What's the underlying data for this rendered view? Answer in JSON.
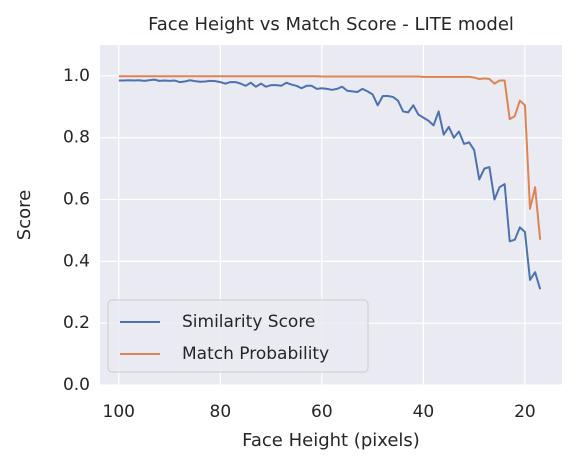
{
  "chart_data": {
    "type": "line",
    "title": "Face Height vs Match Score - LITE model",
    "xlabel": "Face Height (pixels)",
    "ylabel": "Score",
    "x": [
      100,
      99,
      98,
      97,
      96,
      95,
      94,
      93,
      92,
      91,
      90,
      89,
      88,
      87,
      86,
      85,
      84,
      83,
      82,
      81,
      80,
      79,
      78,
      77,
      76,
      75,
      74,
      73,
      72,
      71,
      70,
      69,
      68,
      67,
      66,
      65,
      64,
      63,
      62,
      61,
      60,
      59,
      58,
      57,
      56,
      55,
      54,
      53,
      52,
      51,
      50,
      49,
      48,
      47,
      46,
      45,
      44,
      43,
      42,
      41,
      40,
      39,
      38,
      37,
      36,
      35,
      34,
      33,
      32,
      31,
      30,
      29,
      28,
      27,
      26,
      25,
      24,
      23,
      22,
      21,
      20,
      19,
      18,
      17
    ],
    "series": [
      {
        "name": "Similarity Score",
        "color": "#4c72b0",
        "values": [
          0.985,
          0.985,
          0.986,
          0.985,
          0.986,
          0.984,
          0.986,
          0.988,
          0.984,
          0.985,
          0.984,
          0.985,
          0.98,
          0.982,
          0.986,
          0.983,
          0.981,
          0.982,
          0.984,
          0.983,
          0.98,
          0.975,
          0.98,
          0.98,
          0.975,
          0.968,
          0.978,
          0.965,
          0.975,
          0.965,
          0.97,
          0.97,
          0.968,
          0.978,
          0.972,
          0.968,
          0.96,
          0.968,
          0.968,
          0.958,
          0.96,
          0.958,
          0.955,
          0.958,
          0.965,
          0.952,
          0.95,
          0.948,
          0.958,
          0.95,
          0.94,
          0.905,
          0.935,
          0.935,
          0.932,
          0.92,
          0.885,
          0.882,
          0.905,
          0.875,
          0.865,
          0.855,
          0.84,
          0.885,
          0.81,
          0.835,
          0.8,
          0.82,
          0.78,
          0.785,
          0.76,
          0.665,
          0.7,
          0.705,
          0.6,
          0.64,
          0.65,
          0.465,
          0.47,
          0.51,
          0.495,
          0.34,
          0.365,
          0.31
        ]
      },
      {
        "name": "Match Probability",
        "color": "#dd8452",
        "values": [
          0.999,
          0.999,
          0.999,
          0.999,
          0.999,
          0.999,
          0.999,
          0.999,
          0.999,
          0.999,
          0.999,
          0.999,
          0.999,
          0.999,
          0.999,
          0.999,
          0.999,
          0.999,
          0.999,
          0.999,
          0.999,
          0.999,
          0.999,
          0.999,
          0.999,
          0.999,
          0.999,
          0.999,
          0.999,
          0.999,
          0.999,
          0.999,
          0.999,
          0.999,
          0.999,
          0.999,
          0.999,
          0.999,
          0.999,
          0.999,
          0.998,
          0.998,
          0.998,
          0.998,
          0.998,
          0.998,
          0.998,
          0.998,
          0.998,
          0.998,
          0.998,
          0.998,
          0.998,
          0.998,
          0.998,
          0.998,
          0.998,
          0.998,
          0.998,
          0.998,
          0.997,
          0.997,
          0.997,
          0.997,
          0.997,
          0.997,
          0.997,
          0.997,
          0.997,
          0.997,
          0.995,
          0.99,
          0.992,
          0.99,
          0.975,
          0.985,
          0.985,
          0.86,
          0.87,
          0.92,
          0.905,
          0.57,
          0.64,
          0.47
        ]
      }
    ],
    "xlim": [
      103.7,
      12.7
    ],
    "ylim": [
      0,
      1.1
    ],
    "xticks": [
      100,
      80,
      60,
      40,
      20
    ],
    "yticks": [
      {
        "value": 0,
        "label": "0.0"
      },
      0.2,
      0.4,
      0.6,
      0.8,
      {
        "value": 1,
        "label": "1.0"
      }
    ],
    "grid": true,
    "legend": "lower left"
  }
}
